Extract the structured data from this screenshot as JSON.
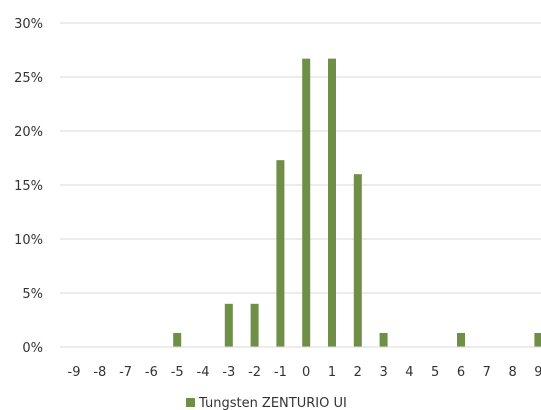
{
  "chart_data": {
    "type": "bar",
    "categories": [
      "-9",
      "-8",
      "-7",
      "-6",
      "-5",
      "-4",
      "-3",
      "-2",
      "-1",
      "0",
      "1",
      "2",
      "3",
      "4",
      "5",
      "6",
      "7",
      "8",
      "9"
    ],
    "series": [
      {
        "name": "Tungsten ZENTURIO UI",
        "color": "#6e8f45",
        "values": [
          0,
          0,
          0,
          0,
          1.3,
          0,
          4.0,
          4.0,
          17.3,
          26.7,
          26.7,
          16.0,
          1.3,
          0,
          0,
          1.3,
          0,
          0,
          1.3
        ]
      }
    ],
    "title": "",
    "xlabel": "",
    "ylabel": "",
    "ylim": [
      0,
      30
    ],
    "yticks": [
      0,
      5,
      10,
      15,
      20,
      25,
      30
    ],
    "ytick_labels": [
      "0%",
      "5%",
      "10%",
      "15%",
      "20%",
      "25%",
      "30%"
    ],
    "grid": true,
    "gridline_color": "#d9d9d9",
    "legend_position": "bottom"
  }
}
